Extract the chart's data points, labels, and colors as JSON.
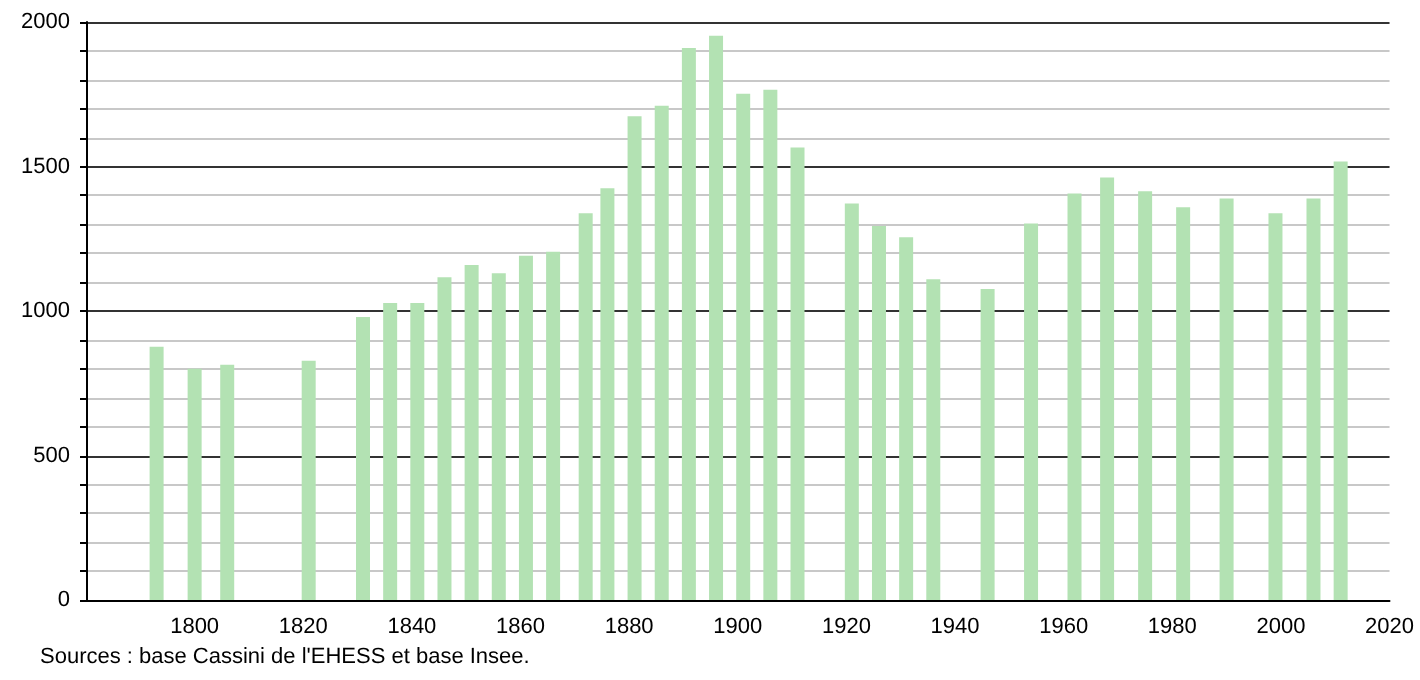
{
  "chart_data": {
    "type": "bar",
    "x": [
      1793,
      1800,
      1806,
      1821,
      1831,
      1836,
      1841,
      1846,
      1851,
      1856,
      1861,
      1866,
      1872,
      1876,
      1881,
      1886,
      1891,
      1896,
      1901,
      1906,
      1911,
      1921,
      1926,
      1931,
      1936,
      1946,
      1954,
      1962,
      1968,
      1975,
      1982,
      1990,
      1999,
      2006,
      2011
    ],
    "values": [
      876,
      800,
      814,
      828,
      979,
      1028,
      1028,
      1117,
      1159,
      1131,
      1191,
      1205,
      1338,
      1425,
      1674,
      1710,
      1910,
      1952,
      1752,
      1766,
      1566,
      1372,
      1294,
      1255,
      1110,
      1076,
      1303,
      1407,
      1462,
      1414,
      1359,
      1389,
      1338,
      1389,
      1517
    ],
    "color": "#b3e2b3",
    "xlim": [
      1780,
      2020
    ],
    "xticks": [
      1800,
      1820,
      1840,
      1860,
      1880,
      1900,
      1920,
      1940,
      1960,
      1980,
      2000,
      2020
    ],
    "ylim": [
      0,
      2000
    ],
    "yticks": [
      0,
      {
        "value": 100,
        "label": null
      },
      {
        "value": 200,
        "label": null
      },
      {
        "value": 300,
        "label": null
      },
      {
        "value": 400,
        "label": null
      },
      500,
      {
        "value": 600,
        "label": null
      },
      {
        "value": 700,
        "label": null
      },
      {
        "value": 800,
        "label": null
      },
      {
        "value": 900,
        "label": null
      },
      1000,
      {
        "value": 1100,
        "label": null
      },
      {
        "value": 1200,
        "label": null
      },
      {
        "value": 1300,
        "label": null
      },
      {
        "value": 1400,
        "label": null
      },
      1500,
      {
        "value": 1600,
        "label": null
      },
      {
        "value": 1700,
        "label": null
      },
      {
        "value": 1800,
        "label": null
      },
      {
        "value": 1900,
        "label": null
      },
      2000
    ],
    "grid": "y",
    "annotations": [
      "Sources : base Cassini de l'EHESS et base Insee."
    ]
  }
}
